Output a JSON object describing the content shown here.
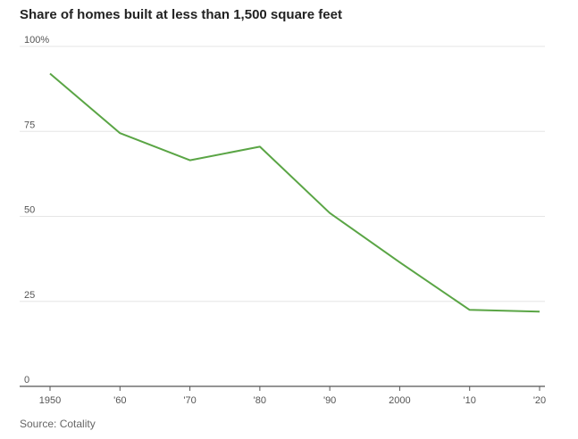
{
  "title": "Share of homes built at less than 1,500 square feet",
  "source": "Source: Cotality",
  "chart_data": {
    "type": "line",
    "title": "Share of homes built at less than 1,500 square feet",
    "xlabel": "",
    "ylabel": "",
    "x_ticks": [
      "1950",
      "'60",
      "'70",
      "'80",
      "'90",
      "2000",
      "'10",
      "'20"
    ],
    "x_tick_values": [
      1950,
      1960,
      1970,
      1980,
      1990,
      2000,
      2010,
      2020
    ],
    "y_ticks": [
      "100%",
      "75",
      "50",
      "25",
      "0"
    ],
    "y_tick_values": [
      100,
      75,
      50,
      25,
      0
    ],
    "xlim": [
      1950,
      2020
    ],
    "ylim": [
      0,
      100
    ],
    "grid": true,
    "series": [
      {
        "color": "#5aa545",
        "x": [
          1950,
          1960,
          1970,
          1980,
          1990,
          2000,
          2010,
          2020
        ],
        "y": [
          92,
          74.5,
          66.5,
          70.5,
          51,
          36.5,
          22.5,
          22
        ]
      }
    ]
  }
}
